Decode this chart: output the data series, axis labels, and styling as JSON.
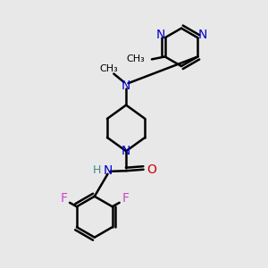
{
  "bg_color": "#e8e8e8",
  "atom_colors": {
    "C": "#000000",
    "N": "#0000cc",
    "O": "#cc0000",
    "F": "#cc44cc",
    "H": "#448888"
  },
  "bond_color": "#000000",
  "bond_width": 1.8
}
